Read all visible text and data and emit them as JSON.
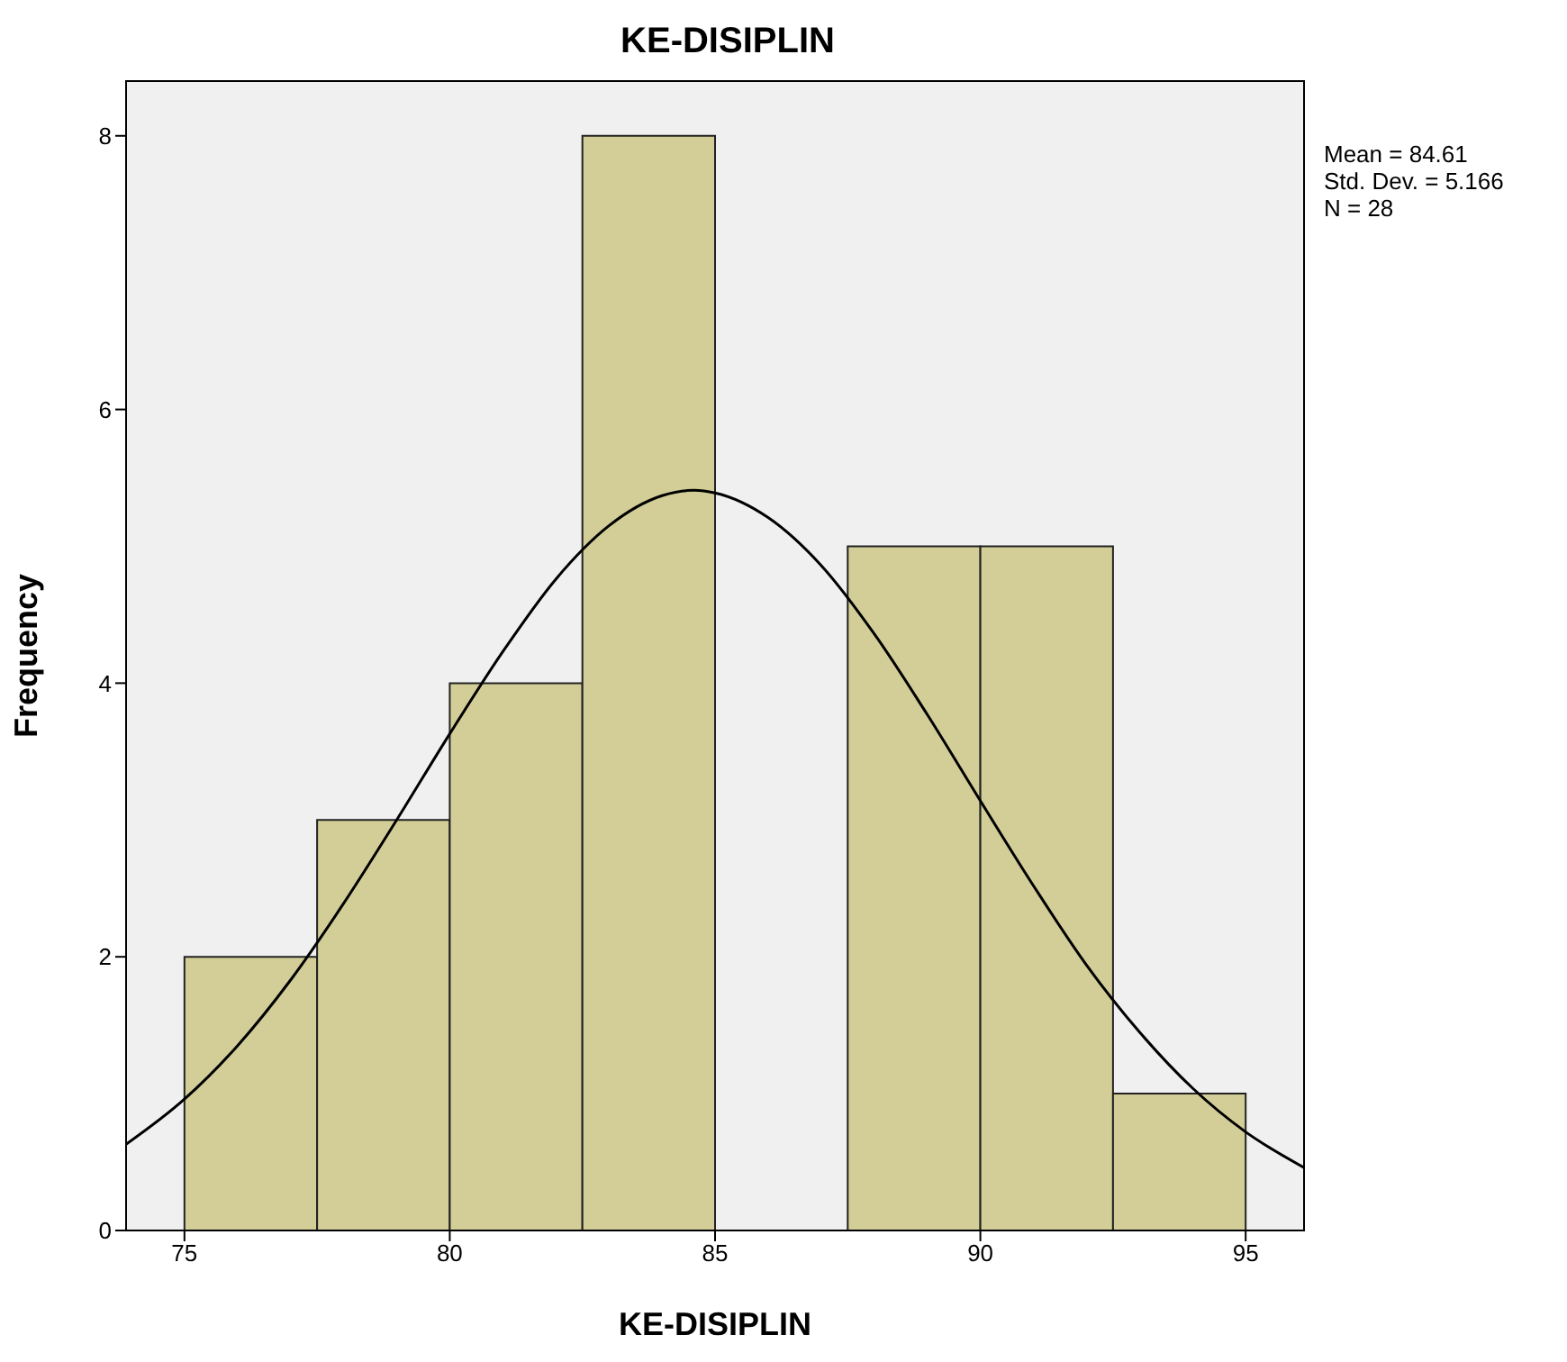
{
  "chart_data": {
    "type": "histogram",
    "title": "KE-DISIPLIN",
    "xlabel": "KE-DISIPLIN",
    "ylabel": "Frequency",
    "bins": [
      75,
      77.5,
      80,
      82.5,
      85,
      87.5,
      90,
      92.5,
      95
    ],
    "values": [
      2,
      3,
      4,
      8,
      0,
      5,
      5,
      1
    ],
    "color": "#d3ce97",
    "series": [
      {
        "type": "line",
        "color": "#000000",
        "x": [
          73.9,
          75,
          76,
          77,
          78,
          79,
          80,
          81,
          82,
          83,
          84,
          84.61,
          85,
          86,
          87,
          88,
          89,
          90,
          91,
          92,
          93,
          94,
          95,
          96.1
        ],
        "values": [
          0.63,
          0.96,
          1.35,
          1.83,
          2.39,
          3.0,
          3.63,
          4.23,
          4.76,
          5.15,
          5.37,
          5.41,
          5.39,
          5.21,
          4.86,
          4.36,
          3.77,
          3.14,
          2.52,
          1.94,
          1.45,
          1.04,
          0.72,
          0.46
        ]
      }
    ],
    "xlim": [
      73.9,
      96.1
    ],
    "xticks": [
      75,
      80,
      85,
      90,
      95
    ],
    "ylim": [
      0,
      8.4
    ],
    "yticks": [
      0,
      2,
      4,
      6,
      8
    ],
    "marker": "none",
    "legend": false,
    "annotations": [
      "Mean = 84.61",
      "Std. Dev. = 5.166",
      "N = 28"
    ]
  }
}
